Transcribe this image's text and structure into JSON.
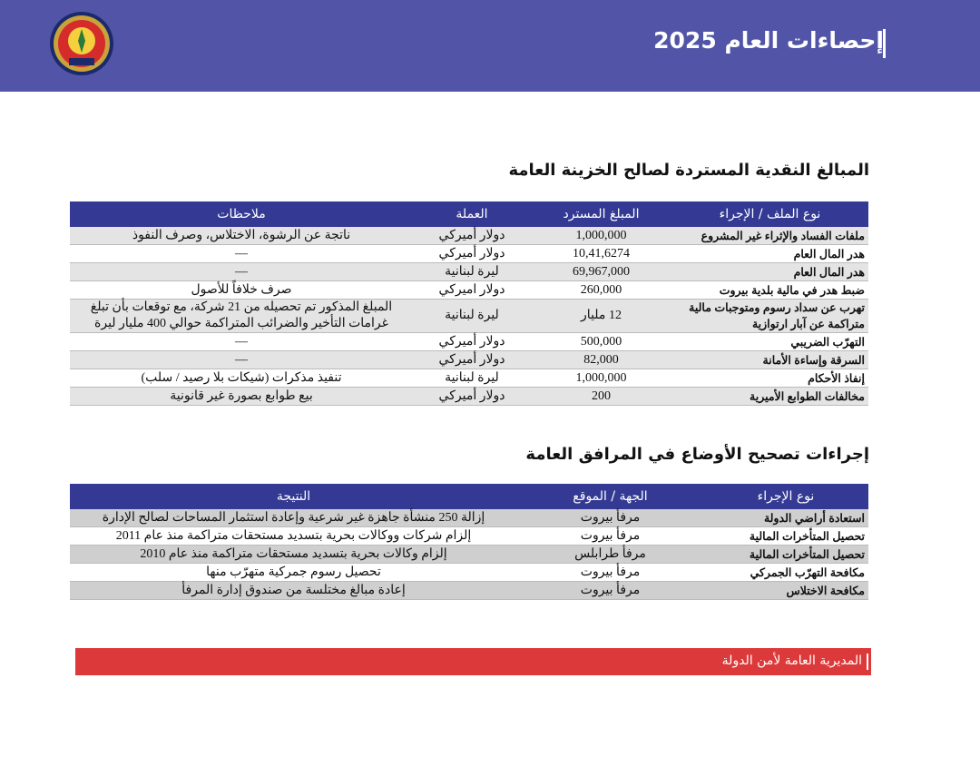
{
  "header": {
    "title": "إحصاءات العام 2025",
    "colors": {
      "band": "#5255a7",
      "table_header": "#343a93",
      "footer": "#dc3a3a"
    }
  },
  "section1": {
    "title": "المبالغ النقدية المستردة لصالح الخزينة العامة",
    "columns": [
      "نوع الملف / الإجراء",
      "المبلغ المسترد",
      "العملة",
      "ملاحظات"
    ],
    "rows": [
      [
        "ملفات الفساد والإثراء غير المشروع",
        "1,000,000",
        "دولار أميركي",
        "ناتجة عن الرشوة، الاختلاس، وصرف النفوذ"
      ],
      [
        "هدر المال العام",
        "10,41,6274",
        "دولار أميركي",
        "—"
      ],
      [
        "هدر المال العام",
        "69,967,000",
        "ليرة لبنانية",
        "—"
      ],
      [
        "ضبط هدر في مالية بلدية بيروت",
        "260,000",
        "دولار اميركي",
        "صرف خلافاً للأصول"
      ],
      [
        "تهرب عن سداد رسوم ومتوجبات مالية متراكمة عن آبار ارتوازية",
        "12 مليار",
        "ليرة لبنانية",
        "المبلغ المذكور تم تحصيله من 21 شركة، مع توقعات بأن تبلغ غرامات التأخير والضرائب المتراكمة حوالي 400 مليار ليرة"
      ],
      [
        "التهرّب الضريبي",
        "500,000",
        "دولار أميركي",
        "—"
      ],
      [
        "السرقة وإساءة الأمانة",
        "82,000",
        "دولار أميركي",
        "—"
      ],
      [
        "إنفاذ الأحكام",
        "1,000,000",
        "ليرة لبنانية",
        "تنفيذ مذكرات (شيكات بلا رصيد / سلب)"
      ],
      [
        "مخالفات الطوابع الأميرية",
        "200",
        "دولار أميركي",
        "بيع طوابع بصورة غير قانونية"
      ]
    ]
  },
  "section2": {
    "title": "إجراءات تصحيح الأوضاع في المرافق العامة",
    "columns": [
      "نوع الإجراء",
      "الجهة / الموقع",
      "النتيجة"
    ],
    "rows": [
      [
        "استعادة أراضي الدولة",
        "مرفأ بيروت",
        "إزالة 250 منشأة جاهزة غير شرعية وإعادة استثمار المساحات لصالح الإدارة"
      ],
      [
        "تحصيل المتأخرات المالية",
        "مرفأ بيروت",
        "إلزام شركات ووكالات بحرية بتسديد مستحقات متراكمة منذ عام 2011"
      ],
      [
        "تحصيل المتأخرات المالية",
        "مرفأ طرابلس",
        "إلزام وكالات بحرية بتسديد مستحقات متراكمة منذ عام 2010"
      ],
      [
        "مكافحة التهرّب الجمركي",
        "مرفأ بيروت",
        "تحصيل رسوم جمركية متهرّب منها"
      ],
      [
        "مكافحة الاختلاس",
        "مرفأ بيروت",
        "إعادة مبالغ مختلسة من صندوق إدارة المرفأ"
      ]
    ]
  },
  "footer": {
    "text": "المديرية العامة لأمن الدولة"
  },
  "logo": {
    "icon": "state-security-emblem"
  }
}
